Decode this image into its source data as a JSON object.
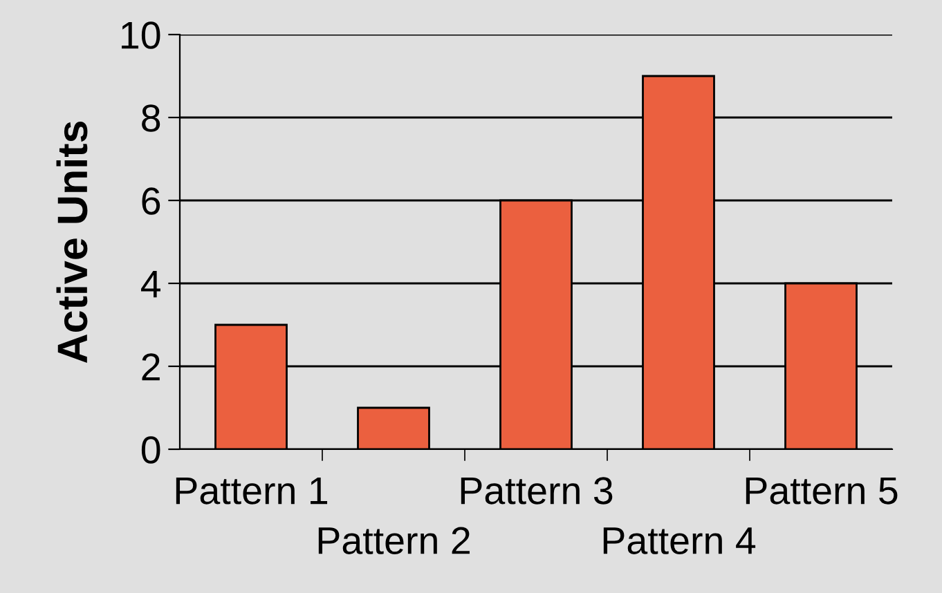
{
  "chart_data": {
    "type": "bar",
    "ylabel": "Active Units",
    "categories": [
      "Pattern 1",
      "Pattern 2",
      "Pattern 3",
      "Pattern 4",
      "Pattern 5"
    ],
    "values": [
      3,
      1,
      6,
      9,
      4
    ],
    "color": "#eb603f",
    "ylim": [
      0,
      10
    ],
    "yticks": [
      0,
      2,
      4,
      6,
      8,
      10
    ],
    "grid": "y",
    "legend": false
  }
}
